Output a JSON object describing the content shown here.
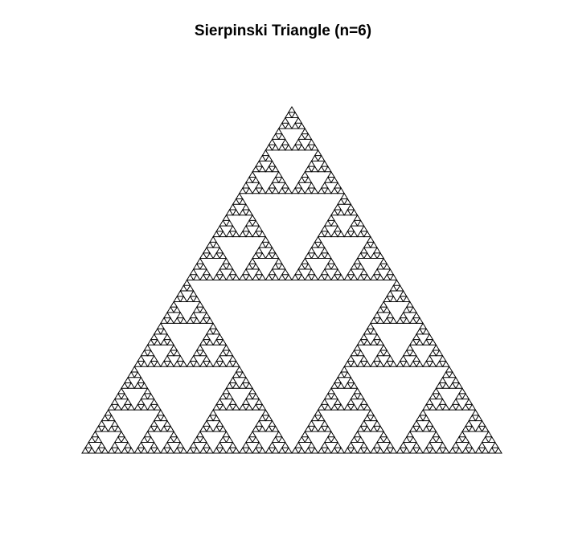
{
  "title": "Sierpinski Triangle (n=6)",
  "fractal": {
    "depth": 6,
    "stroke_color": "#000000",
    "background_color": "#ffffff"
  }
}
